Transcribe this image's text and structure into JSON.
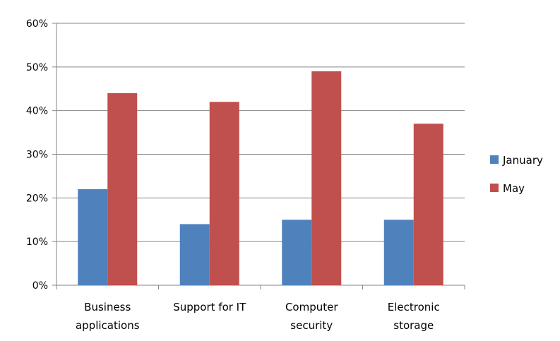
{
  "chart_data": {
    "type": "bar",
    "categories": [
      [
        "Business",
        "applications"
      ],
      [
        "Support for IT"
      ],
      [
        "Computer",
        "security"
      ],
      [
        "Electronic",
        "storage"
      ]
    ],
    "series": [
      {
        "name": "January",
        "color": "#4f81bd",
        "values": [
          22,
          14,
          15,
          15
        ]
      },
      {
        "name": "May",
        "color": "#c0504d",
        "values": [
          44,
          42,
          49,
          37
        ]
      }
    ],
    "ylim": [
      0,
      60
    ],
    "yticks": [
      "0%",
      "10%",
      "20%",
      "30%",
      "40%",
      "50%",
      "60%"
    ],
    "grid": true,
    "legend_position": "right"
  }
}
